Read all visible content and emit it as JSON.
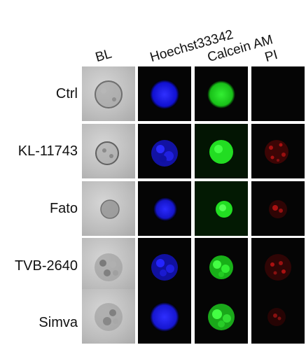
{
  "columns": [
    "BL",
    "Hoechst33342",
    "Calcein AM",
    "PI"
  ],
  "rows": [
    "Ctrl",
    "KL-11743",
    "Fato",
    "TVB-2640",
    "Simva"
  ],
  "colors": {
    "hoechst": "#1a1aff",
    "calcein": "#22dd22",
    "pi": "#aa1111"
  }
}
